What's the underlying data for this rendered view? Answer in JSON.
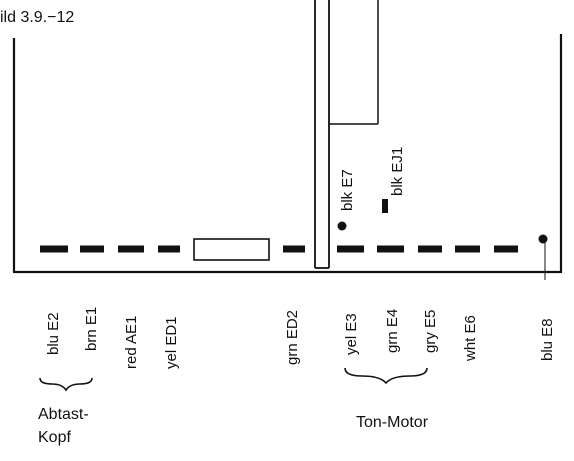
{
  "figure": {
    "caption": "ild 3.9.−12"
  },
  "top_labels": {
    "blk_e7": "blk E7",
    "blk_ej1": "blk EJ1"
  },
  "wire_labels": [
    "blu E2",
    "brn E1",
    "red AE1",
    "yel ED1",
    "grn ED2",
    "yel E3",
    "grn E4",
    "gry E5",
    "wht E6",
    "blu E8"
  ],
  "groups": {
    "abtast_line1": "Abtast-",
    "abtast_line2": "Kopf",
    "ton_motor": "Ton-Motor"
  },
  "colors": {
    "ink": "#111111",
    "background": "#ffffff"
  }
}
